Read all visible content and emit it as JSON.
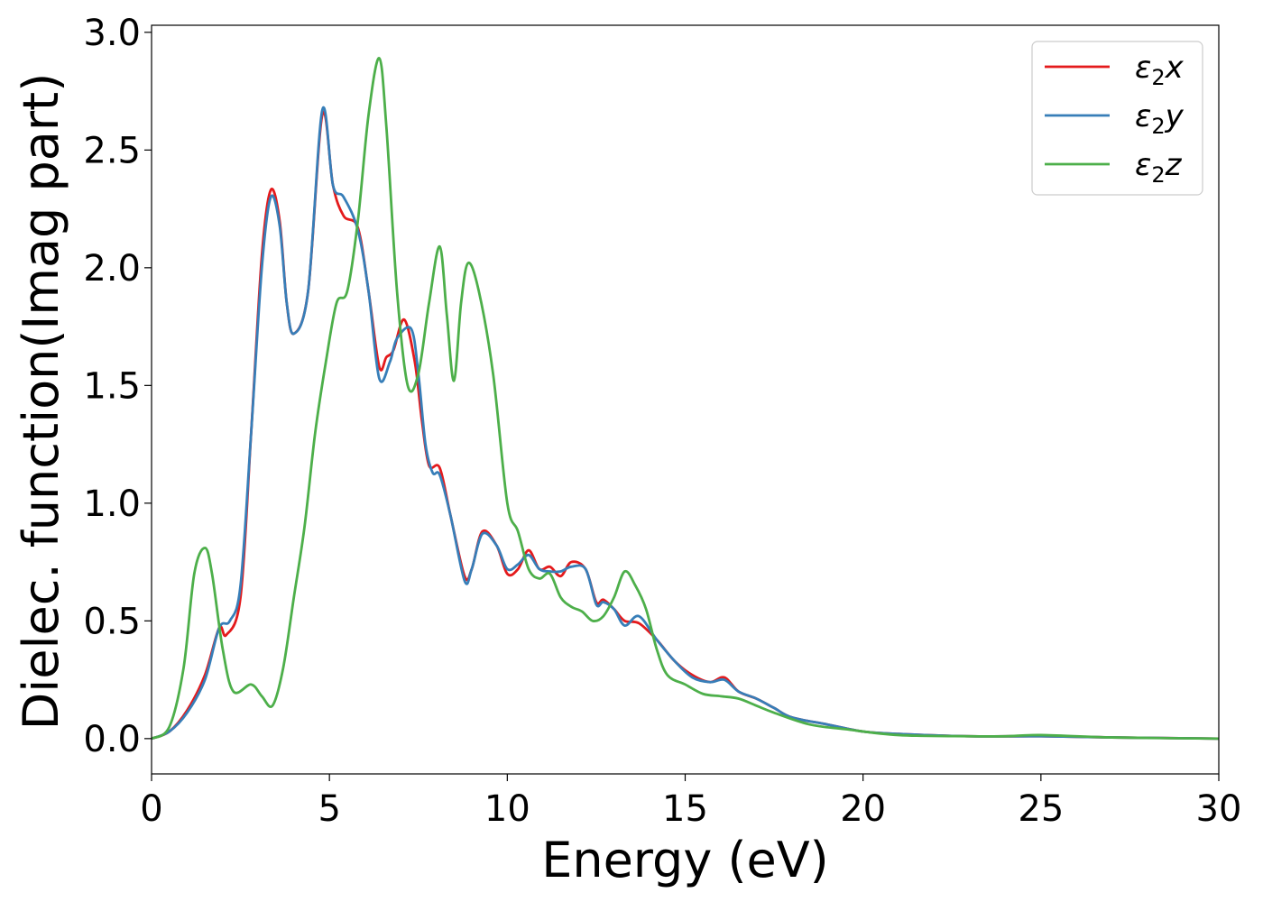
{
  "chart_data": {
    "type": "line",
    "title": "",
    "xlabel": "Energy (eV)",
    "ylabel": "Dielec. function(Imag part)",
    "xlim": [
      0,
      30
    ],
    "ylim": [
      -0.15,
      3.03
    ],
    "xticks": [
      0,
      5,
      10,
      15,
      20,
      25,
      30
    ],
    "yticks": [
      0.0,
      0.5,
      1.0,
      1.5,
      2.0,
      2.5,
      3.0
    ],
    "grid": false,
    "legend_position": "top-right",
    "series": [
      {
        "name_base": "ε",
        "name_sub": "2",
        "name_suffix": "x",
        "color": "#e41a1c",
        "points": [
          [
            0,
            0
          ],
          [
            0.5,
            0.03
          ],
          [
            1.0,
            0.12
          ],
          [
            1.5,
            0.27
          ],
          [
            1.9,
            0.47
          ],
          [
            2.1,
            0.44
          ],
          [
            2.5,
            0.6
          ],
          [
            2.8,
            1.3
          ],
          [
            3.1,
            2.05
          ],
          [
            3.35,
            2.33
          ],
          [
            3.6,
            2.2
          ],
          [
            3.8,
            1.85
          ],
          [
            4.0,
            1.72
          ],
          [
            4.4,
            1.9
          ],
          [
            4.8,
            2.65
          ],
          [
            5.1,
            2.35
          ],
          [
            5.4,
            2.22
          ],
          [
            5.8,
            2.17
          ],
          [
            6.1,
            1.9
          ],
          [
            6.4,
            1.58
          ],
          [
            6.6,
            1.62
          ],
          [
            6.8,
            1.65
          ],
          [
            7.1,
            1.78
          ],
          [
            7.4,
            1.6
          ],
          [
            7.6,
            1.35
          ],
          [
            7.8,
            1.16
          ],
          [
            8.1,
            1.15
          ],
          [
            8.4,
            0.95
          ],
          [
            8.8,
            0.69
          ],
          [
            9.0,
            0.72
          ],
          [
            9.3,
            0.88
          ],
          [
            9.7,
            0.82
          ],
          [
            10.0,
            0.7
          ],
          [
            10.3,
            0.72
          ],
          [
            10.6,
            0.8
          ],
          [
            10.9,
            0.72
          ],
          [
            11.2,
            0.73
          ],
          [
            11.5,
            0.69
          ],
          [
            11.8,
            0.75
          ],
          [
            12.2,
            0.72
          ],
          [
            12.5,
            0.58
          ],
          [
            12.7,
            0.59
          ],
          [
            13.0,
            0.55
          ],
          [
            13.3,
            0.5
          ],
          [
            13.7,
            0.49
          ],
          [
            14.2,
            0.42
          ],
          [
            14.7,
            0.33
          ],
          [
            15.2,
            0.27
          ],
          [
            15.7,
            0.24
          ],
          [
            16.1,
            0.26
          ],
          [
            16.5,
            0.2
          ],
          [
            17.0,
            0.17
          ],
          [
            17.5,
            0.13
          ],
          [
            18.0,
            0.09
          ],
          [
            19.0,
            0.06
          ],
          [
            20.0,
            0.03
          ],
          [
            21.0,
            0.02
          ],
          [
            23.0,
            0.01
          ],
          [
            25.0,
            0.01
          ],
          [
            27.0,
            0.005
          ],
          [
            30.0,
            0.0
          ]
        ]
      },
      {
        "name_base": "ε",
        "name_sub": "2",
        "name_suffix": "y",
        "color": "#377eb8",
        "points": [
          [
            0,
            0
          ],
          [
            0.5,
            0.03
          ],
          [
            1.0,
            0.11
          ],
          [
            1.5,
            0.25
          ],
          [
            1.9,
            0.47
          ],
          [
            2.2,
            0.5
          ],
          [
            2.5,
            0.65
          ],
          [
            2.8,
            1.3
          ],
          [
            3.1,
            2.0
          ],
          [
            3.35,
            2.3
          ],
          [
            3.6,
            2.18
          ],
          [
            3.8,
            1.85
          ],
          [
            4.0,
            1.72
          ],
          [
            4.4,
            1.9
          ],
          [
            4.8,
            2.67
          ],
          [
            5.1,
            2.35
          ],
          [
            5.4,
            2.3
          ],
          [
            5.8,
            2.16
          ],
          [
            6.1,
            1.9
          ],
          [
            6.4,
            1.53
          ],
          [
            6.7,
            1.6
          ],
          [
            6.9,
            1.7
          ],
          [
            7.3,
            1.74
          ],
          [
            7.5,
            1.55
          ],
          [
            7.7,
            1.25
          ],
          [
            7.9,
            1.13
          ],
          [
            8.1,
            1.12
          ],
          [
            8.4,
            0.95
          ],
          [
            8.8,
            0.67
          ],
          [
            9.0,
            0.72
          ],
          [
            9.3,
            0.87
          ],
          [
            9.7,
            0.82
          ],
          [
            10.0,
            0.72
          ],
          [
            10.3,
            0.74
          ],
          [
            10.6,
            0.78
          ],
          [
            10.9,
            0.72
          ],
          [
            11.2,
            0.71
          ],
          [
            11.5,
            0.71
          ],
          [
            11.8,
            0.73
          ],
          [
            12.2,
            0.72
          ],
          [
            12.5,
            0.57
          ],
          [
            12.7,
            0.58
          ],
          [
            13.0,
            0.55
          ],
          [
            13.3,
            0.48
          ],
          [
            13.7,
            0.52
          ],
          [
            14.2,
            0.42
          ],
          [
            14.7,
            0.33
          ],
          [
            15.2,
            0.26
          ],
          [
            15.7,
            0.24
          ],
          [
            16.1,
            0.25
          ],
          [
            16.5,
            0.2
          ],
          [
            17.0,
            0.17
          ],
          [
            17.5,
            0.13
          ],
          [
            18.0,
            0.09
          ],
          [
            19.0,
            0.06
          ],
          [
            20.0,
            0.03
          ],
          [
            21.0,
            0.02
          ],
          [
            23.0,
            0.01
          ],
          [
            25.0,
            0.01
          ],
          [
            27.0,
            0.005
          ],
          [
            30.0,
            0.0
          ]
        ]
      },
      {
        "name_base": "ε",
        "name_sub": "2",
        "name_suffix": "z",
        "color": "#4daf4a",
        "points": [
          [
            0,
            0
          ],
          [
            0.5,
            0.05
          ],
          [
            0.9,
            0.3
          ],
          [
            1.2,
            0.7
          ],
          [
            1.5,
            0.81
          ],
          [
            1.7,
            0.7
          ],
          [
            2.0,
            0.38
          ],
          [
            2.3,
            0.2
          ],
          [
            2.8,
            0.23
          ],
          [
            3.1,
            0.18
          ],
          [
            3.4,
            0.14
          ],
          [
            3.7,
            0.3
          ],
          [
            4.0,
            0.6
          ],
          [
            4.3,
            0.9
          ],
          [
            4.6,
            1.3
          ],
          [
            4.9,
            1.6
          ],
          [
            5.2,
            1.85
          ],
          [
            5.5,
            1.9
          ],
          [
            5.8,
            2.2
          ],
          [
            6.1,
            2.65
          ],
          [
            6.4,
            2.89
          ],
          [
            6.6,
            2.6
          ],
          [
            6.9,
            1.9
          ],
          [
            7.2,
            1.5
          ],
          [
            7.5,
            1.55
          ],
          [
            7.8,
            1.85
          ],
          [
            8.1,
            2.09
          ],
          [
            8.3,
            1.8
          ],
          [
            8.5,
            1.52
          ],
          [
            8.7,
            1.85
          ],
          [
            8.9,
            2.02
          ],
          [
            9.2,
            1.9
          ],
          [
            9.6,
            1.55
          ],
          [
            10.0,
            1.0
          ],
          [
            10.3,
            0.88
          ],
          [
            10.6,
            0.72
          ],
          [
            10.9,
            0.68
          ],
          [
            11.2,
            0.7
          ],
          [
            11.5,
            0.6
          ],
          [
            11.8,
            0.56
          ],
          [
            12.1,
            0.54
          ],
          [
            12.4,
            0.5
          ],
          [
            12.7,
            0.52
          ],
          [
            13.0,
            0.6
          ],
          [
            13.3,
            0.71
          ],
          [
            13.6,
            0.65
          ],
          [
            13.9,
            0.55
          ],
          [
            14.2,
            0.38
          ],
          [
            14.5,
            0.27
          ],
          [
            15.0,
            0.23
          ],
          [
            15.5,
            0.19
          ],
          [
            16.0,
            0.18
          ],
          [
            16.5,
            0.17
          ],
          [
            17.0,
            0.14
          ],
          [
            17.5,
            0.11
          ],
          [
            18.5,
            0.06
          ],
          [
            19.5,
            0.04
          ],
          [
            21.0,
            0.015
          ],
          [
            23.0,
            0.01
          ],
          [
            24.0,
            0.01
          ],
          [
            25.0,
            0.015
          ],
          [
            27.0,
            0.005
          ],
          [
            30.0,
            0.0
          ]
        ]
      }
    ]
  }
}
